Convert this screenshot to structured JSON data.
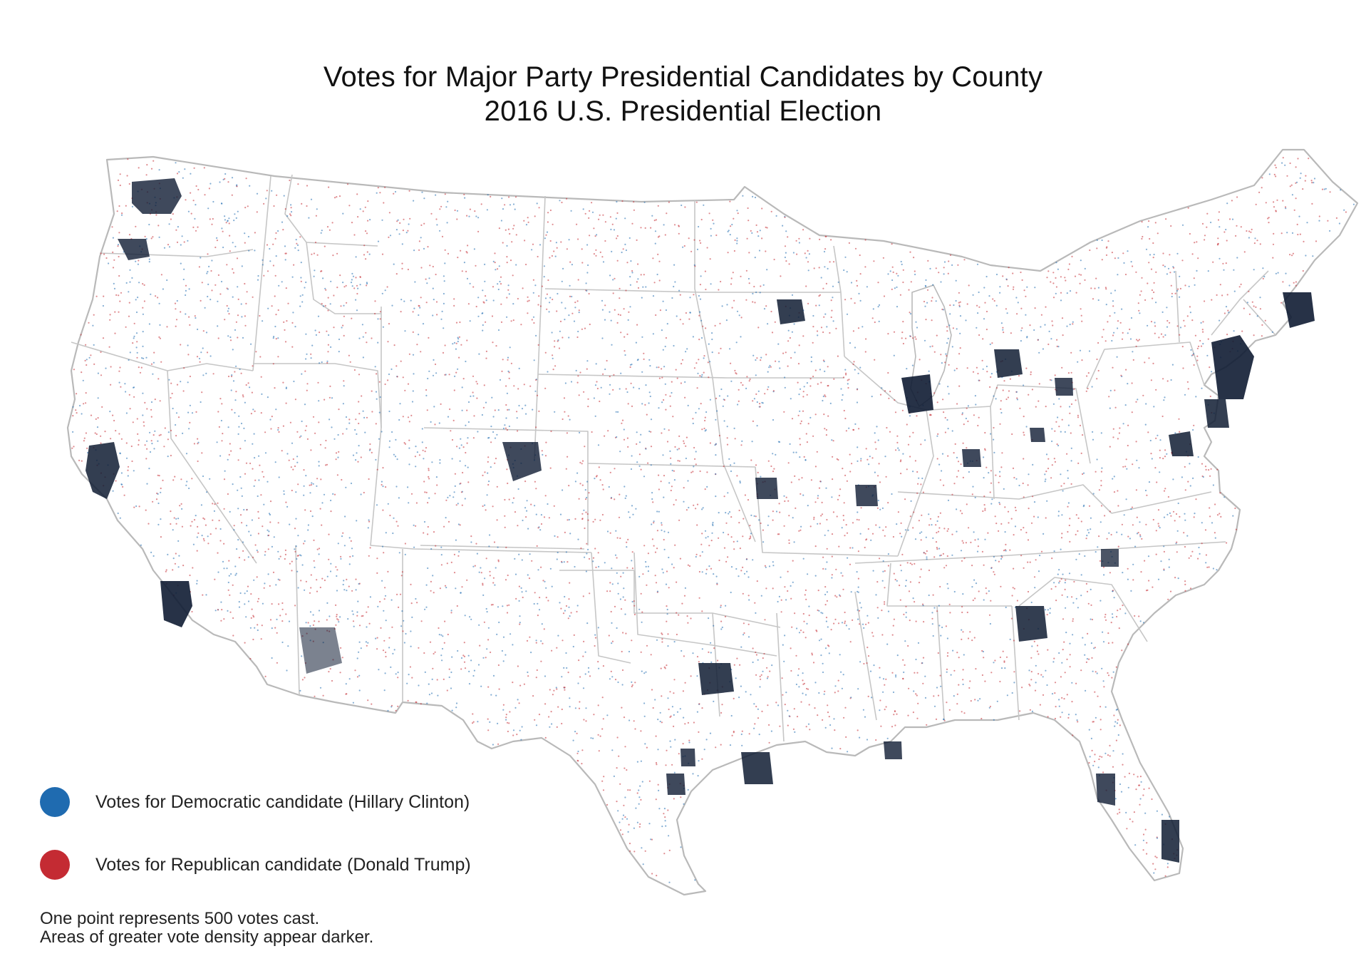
{
  "map": {
    "title": "Votes for Major Party Presidential Candidates by County",
    "subtitle": "2016 U.S. Presidential Election",
    "region": "Contiguous United States"
  },
  "legend": {
    "items": [
      {
        "label": "Votes for Democratic candidate (Hillary Clinton)",
        "color": "#1f6bb0"
      },
      {
        "label": "Votes for Republican candidate (Donald Trump)",
        "color": "#c42b33"
      }
    ]
  },
  "notes": {
    "line1": "One point represents 500 votes cast.",
    "line2": "Areas of greater vote density appear darker."
  },
  "colors": {
    "democratic": "#1f6bb0",
    "republican": "#c42b33",
    "dense": "#0f1c33",
    "border": "#b9b9b9"
  }
}
